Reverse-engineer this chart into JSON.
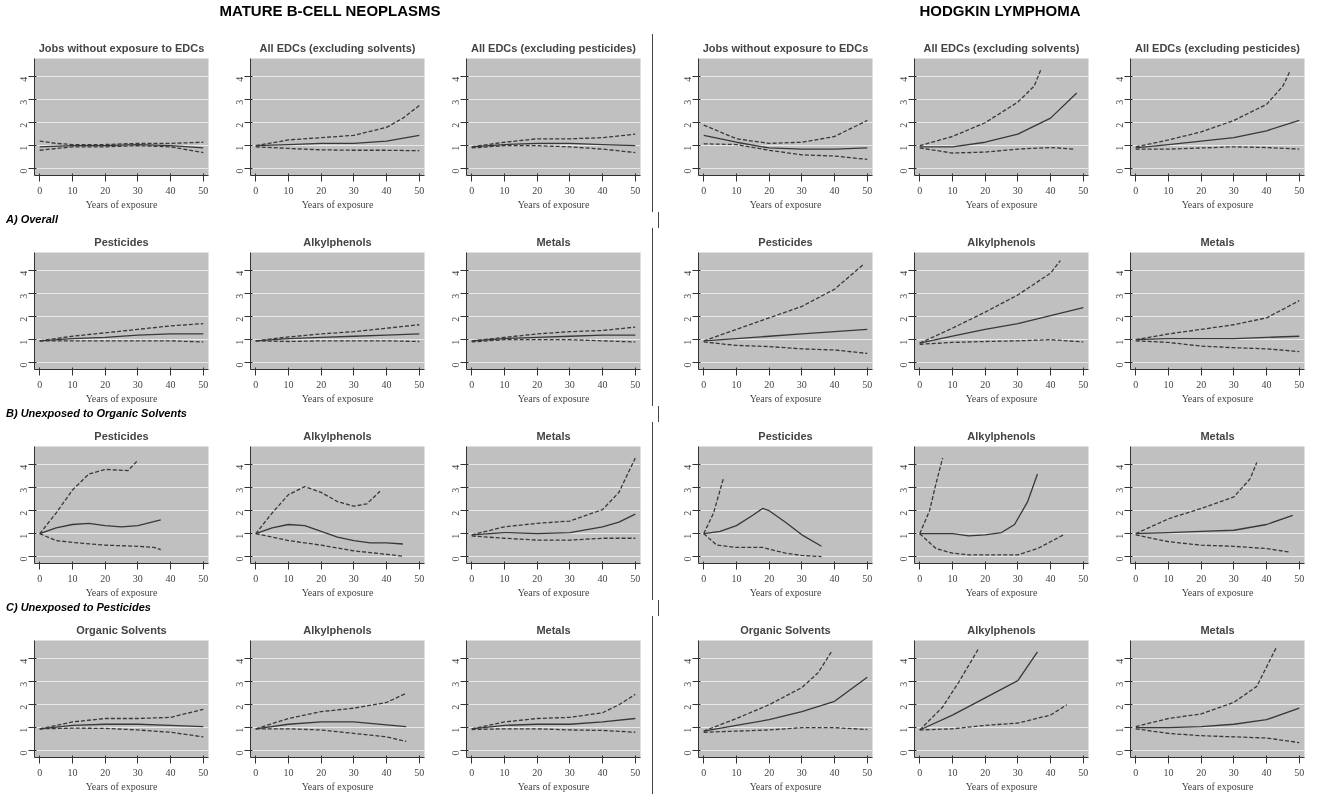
{
  "chart_data": [
    {
      "type": "line",
      "title": "Jobs without exposure to EDCs",
      "xlabel": "Years of exposure",
      "annotations": [
        "MATURE B-CELL NEOPLASMS"
      ],
      "xlim": [
        -1.6,
        51.6
      ],
      "ylim": [
        -0.3,
        4.8
      ],
      "xticks": [
        0,
        10,
        20,
        30,
        40,
        50
      ],
      "yticks": [
        0,
        1,
        2,
        3,
        4
      ],
      "grid": "y",
      "series": [
        {
          "color": "#383838",
          "line_style": "solid",
          "x": [
            0,
            10,
            20,
            30,
            40,
            50
          ],
          "values": [
            0.95,
            1.0,
            1.0,
            1.05,
            1.0,
            0.9
          ]
        },
        {
          "color": "#383838",
          "line_style": "dashed",
          "x": [
            0,
            5,
            10,
            20,
            30,
            40,
            50
          ],
          "values": [
            1.2,
            1.1,
            1.05,
            1.05,
            1.1,
            1.1,
            1.15
          ]
        },
        {
          "color": "#383838",
          "line_style": "dashed",
          "x": [
            0,
            10,
            20,
            30,
            40,
            50
          ],
          "values": [
            0.8,
            0.95,
            0.95,
            1.0,
            0.95,
            0.7
          ]
        }
      ]
    },
    {
      "type": "line",
      "title": "All EDCs (excluding solvents)",
      "xlabel": "Years of exposure",
      "xlim": [
        -1.6,
        51.6
      ],
      "ylim": [
        -0.3,
        4.8
      ],
      "xticks": [
        0,
        10,
        20,
        30,
        40,
        50
      ],
      "yticks": [
        0,
        1,
        2,
        3,
        4
      ],
      "grid": "y",
      "series": [
        {
          "color": "#383838",
          "line_style": "solid",
          "x": [
            0,
            10,
            20,
            30,
            40,
            50
          ],
          "values": [
            1.0,
            1.05,
            1.1,
            1.1,
            1.2,
            1.45
          ]
        },
        {
          "color": "#383838",
          "line_style": "dashed",
          "x": [
            0,
            10,
            20,
            30,
            40,
            45,
            50
          ],
          "values": [
            1.0,
            1.25,
            1.35,
            1.45,
            1.8,
            2.2,
            2.75
          ]
        },
        {
          "color": "#383838",
          "line_style": "dashed",
          "x": [
            0,
            10,
            20,
            30,
            40,
            50
          ],
          "values": [
            0.95,
            0.88,
            0.82,
            0.8,
            0.8,
            0.78
          ]
        }
      ]
    },
    {
      "type": "line",
      "title": "All EDCs (excluding pesticides)",
      "xlabel": "Years of exposure",
      "xlim": [
        -1.6,
        51.6
      ],
      "ylim": [
        -0.3,
        4.8
      ],
      "xticks": [
        0,
        10,
        20,
        30,
        40,
        50
      ],
      "yticks": [
        0,
        1,
        2,
        3,
        4
      ],
      "grid": "y",
      "series": [
        {
          "color": "#383838",
          "line_style": "solid",
          "x": [
            0,
            10,
            20,
            30,
            40,
            50
          ],
          "values": [
            0.95,
            1.05,
            1.1,
            1.1,
            1.05,
            1.0
          ]
        },
        {
          "color": "#383838",
          "line_style": "dashed",
          "x": [
            0,
            10,
            20,
            30,
            40,
            50
          ],
          "values": [
            0.95,
            1.15,
            1.3,
            1.3,
            1.35,
            1.5
          ]
        },
        {
          "color": "#383838",
          "line_style": "dashed",
          "x": [
            0,
            10,
            20,
            30,
            40,
            50
          ],
          "values": [
            0.9,
            1.0,
            1.0,
            0.95,
            0.85,
            0.7
          ]
        }
      ]
    },
    {
      "type": "line",
      "title": "Jobs without exposure to EDCs",
      "xlabel": "Years of exposure",
      "annotations": [
        "HODGKIN LYMPHOMA"
      ],
      "xlim": [
        -1.6,
        51.6
      ],
      "ylim": [
        -0.3,
        4.8
      ],
      "xticks": [
        0,
        10,
        20,
        30,
        40,
        50
      ],
      "yticks": [
        0,
        1,
        2,
        3,
        4
      ],
      "grid": "y",
      "series": [
        {
          "color": "#383838",
          "line_style": "solid",
          "x": [
            0,
            10,
            20,
            30,
            40,
            50
          ],
          "values": [
            1.45,
            1.15,
            0.9,
            0.85,
            0.85,
            0.9
          ]
        },
        {
          "color": "#383838",
          "line_style": "dashed",
          "x": [
            0,
            10,
            20,
            30,
            40,
            50
          ],
          "values": [
            1.9,
            1.3,
            1.1,
            1.15,
            1.4,
            2.1
          ]
        },
        {
          "color": "#383838",
          "line_style": "dashed",
          "x": [
            0,
            10,
            20,
            30,
            40,
            50
          ],
          "values": [
            1.08,
            1.05,
            0.8,
            0.6,
            0.55,
            0.4
          ]
        }
      ]
    },
    {
      "type": "line",
      "title": "All EDCs (excluding solvents)",
      "xlabel": "Years of exposure",
      "xlim": [
        -1.6,
        51.6
      ],
      "ylim": [
        -0.3,
        4.8
      ],
      "xticks": [
        0,
        10,
        20,
        30,
        40,
        50
      ],
      "yticks": [
        0,
        1,
        2,
        3,
        4
      ],
      "grid": "y",
      "series": [
        {
          "color": "#383838",
          "line_style": "solid",
          "x": [
            0,
            10,
            20,
            30,
            40,
            48
          ],
          "values": [
            0.95,
            0.95,
            1.15,
            1.5,
            2.2,
            3.3
          ]
        },
        {
          "color": "#383838",
          "line_style": "dashed",
          "x": [
            0,
            10,
            20,
            30,
            35,
            37
          ],
          "values": [
            1.0,
            1.4,
            2.0,
            2.9,
            3.6,
            4.3
          ]
        },
        {
          "color": "#383838",
          "line_style": "dashed",
          "x": [
            0,
            10,
            20,
            30,
            40,
            47
          ],
          "values": [
            0.9,
            0.68,
            0.72,
            0.85,
            0.92,
            0.85
          ]
        }
      ]
    },
    {
      "type": "line",
      "title": "All EDCs (excluding pesticides)",
      "xlabel": "Years of exposure",
      "xlim": [
        -1.6,
        51.6
      ],
      "ylim": [
        -0.3,
        4.8
      ],
      "xticks": [
        0,
        10,
        20,
        30,
        40,
        50
      ],
      "yticks": [
        0,
        1,
        2,
        3,
        4
      ],
      "grid": "y",
      "series": [
        {
          "color": "#383838",
          "line_style": "solid",
          "x": [
            0,
            10,
            20,
            30,
            40,
            50
          ],
          "values": [
            0.9,
            1.05,
            1.2,
            1.35,
            1.65,
            2.1
          ]
        },
        {
          "color": "#383838",
          "line_style": "dashed",
          "x": [
            0,
            10,
            20,
            30,
            40,
            45,
            47
          ],
          "values": [
            0.95,
            1.25,
            1.6,
            2.1,
            2.8,
            3.6,
            4.2
          ]
        },
        {
          "color": "#383838",
          "line_style": "dashed",
          "x": [
            0,
            10,
            20,
            30,
            40,
            50
          ],
          "values": [
            0.85,
            0.85,
            0.9,
            0.95,
            0.92,
            0.85
          ]
        }
      ]
    },
    {
      "type": "line",
      "title": "Pesticides",
      "xlabel": "Years of exposure",
      "annotations": [
        "A) Overall"
      ],
      "xlim": [
        -1.6,
        51.6
      ],
      "ylim": [
        -0.3,
        4.8
      ],
      "xticks": [
        0,
        10,
        20,
        30,
        40,
        50
      ],
      "yticks": [
        0,
        1,
        2,
        3,
        4
      ],
      "grid": "y",
      "series": [
        {
          "color": "#383838",
          "line_style": "solid",
          "x": [
            0,
            10,
            20,
            30,
            40,
            50
          ],
          "values": [
            0.95,
            1.05,
            1.1,
            1.2,
            1.25,
            1.25
          ]
        },
        {
          "color": "#383838",
          "line_style": "dashed",
          "x": [
            0,
            10,
            20,
            30,
            40,
            50
          ],
          "values": [
            0.95,
            1.15,
            1.3,
            1.45,
            1.6,
            1.7
          ]
        },
        {
          "color": "#383838",
          "line_style": "dashed",
          "x": [
            0,
            10,
            20,
            30,
            40,
            50
          ],
          "values": [
            0.95,
            0.95,
            0.95,
            0.95,
            0.95,
            0.9
          ]
        }
      ]
    },
    {
      "type": "line",
      "title": "Alkylphenols",
      "xlabel": "Years of exposure",
      "xlim": [
        -1.6,
        51.6
      ],
      "ylim": [
        -0.3,
        4.8
      ],
      "xticks": [
        0,
        10,
        20,
        30,
        40,
        50
      ],
      "yticks": [
        0,
        1,
        2,
        3,
        4
      ],
      "grid": "y",
      "series": [
        {
          "color": "#383838",
          "line_style": "solid",
          "x": [
            0,
            10,
            20,
            30,
            40,
            50
          ],
          "values": [
            0.95,
            1.05,
            1.1,
            1.15,
            1.2,
            1.25
          ]
        },
        {
          "color": "#383838",
          "line_style": "dashed",
          "x": [
            0,
            10,
            20,
            30,
            40,
            50
          ],
          "values": [
            0.95,
            1.12,
            1.25,
            1.35,
            1.5,
            1.65
          ]
        },
        {
          "color": "#383838",
          "line_style": "dashed",
          "x": [
            0,
            10,
            20,
            30,
            40,
            50
          ],
          "values": [
            0.95,
            0.92,
            0.95,
            0.95,
            0.95,
            0.92
          ]
        }
      ]
    },
    {
      "type": "line",
      "title": "Metals",
      "xlabel": "Years of exposure",
      "xlim": [
        -1.6,
        51.6
      ],
      "ylim": [
        -0.3,
        4.8
      ],
      "xticks": [
        0,
        10,
        20,
        30,
        40,
        50
      ],
      "yticks": [
        0,
        1,
        2,
        3,
        4
      ],
      "grid": "y",
      "series": [
        {
          "color": "#383838",
          "line_style": "solid",
          "x": [
            0,
            10,
            20,
            30,
            40,
            50
          ],
          "values": [
            0.95,
            1.05,
            1.1,
            1.15,
            1.2,
            1.2
          ]
        },
        {
          "color": "#383838",
          "line_style": "dashed",
          "x": [
            0,
            10,
            20,
            30,
            40,
            50
          ],
          "values": [
            0.95,
            1.1,
            1.25,
            1.35,
            1.4,
            1.55
          ]
        },
        {
          "color": "#383838",
          "line_style": "dashed",
          "x": [
            0,
            10,
            20,
            30,
            40,
            50
          ],
          "values": [
            0.9,
            1.0,
            1.0,
            1.0,
            0.95,
            0.9
          ]
        }
      ]
    },
    {
      "type": "line",
      "title": "Pesticides",
      "xlabel": "Years of exposure",
      "xlim": [
        -1.6,
        51.6
      ],
      "ylim": [
        -0.3,
        4.8
      ],
      "xticks": [
        0,
        10,
        20,
        30,
        40,
        50
      ],
      "yticks": [
        0,
        1,
        2,
        3,
        4
      ],
      "grid": "y",
      "series": [
        {
          "color": "#383838",
          "line_style": "solid",
          "x": [
            0,
            10,
            20,
            30,
            40,
            50
          ],
          "values": [
            0.95,
            1.05,
            1.15,
            1.25,
            1.35,
            1.45
          ]
        },
        {
          "color": "#383838",
          "line_style": "dashed",
          "x": [
            0,
            10,
            20,
            30,
            40,
            49
          ],
          "values": [
            0.95,
            1.45,
            1.95,
            2.45,
            3.2,
            4.3
          ]
        },
        {
          "color": "#383838",
          "line_style": "dashed",
          "x": [
            0,
            10,
            20,
            30,
            40,
            50
          ],
          "values": [
            0.9,
            0.75,
            0.7,
            0.6,
            0.55,
            0.4
          ]
        }
      ]
    },
    {
      "type": "line",
      "title": "Alkylphenols",
      "xlabel": "Years of exposure",
      "xlim": [
        -1.6,
        51.6
      ],
      "ylim": [
        -0.3,
        4.8
      ],
      "xticks": [
        0,
        10,
        20,
        30,
        40,
        50
      ],
      "yticks": [
        0,
        1,
        2,
        3,
        4
      ],
      "grid": "y",
      "series": [
        {
          "color": "#383838",
          "line_style": "solid",
          "x": [
            0,
            10,
            20,
            30,
            40,
            50
          ],
          "values": [
            0.85,
            1.15,
            1.45,
            1.7,
            2.05,
            2.4
          ]
        },
        {
          "color": "#383838",
          "line_style": "dashed",
          "x": [
            0,
            10,
            20,
            30,
            40,
            43
          ],
          "values": [
            0.85,
            1.5,
            2.2,
            2.95,
            3.9,
            4.45
          ]
        },
        {
          "color": "#383838",
          "line_style": "dashed",
          "x": [
            0,
            10,
            20,
            30,
            40,
            50
          ],
          "values": [
            0.8,
            0.88,
            0.92,
            0.95,
            1.0,
            0.9
          ]
        }
      ]
    },
    {
      "type": "line",
      "title": "Metals",
      "xlabel": "Years of exposure",
      "xlim": [
        -1.6,
        51.6
      ],
      "ylim": [
        -0.3,
        4.8
      ],
      "xticks": [
        0,
        10,
        20,
        30,
        40,
        50
      ],
      "yticks": [
        0,
        1,
        2,
        3,
        4
      ],
      "grid": "y",
      "series": [
        {
          "color": "#383838",
          "line_style": "solid",
          "x": [
            0,
            10,
            20,
            30,
            40,
            50
          ],
          "values": [
            1.0,
            1.05,
            1.05,
            1.05,
            1.1,
            1.15
          ]
        },
        {
          "color": "#383838",
          "line_style": "dashed",
          "x": [
            0,
            10,
            20,
            30,
            40,
            50
          ],
          "values": [
            1.0,
            1.25,
            1.45,
            1.65,
            1.95,
            2.7
          ]
        },
        {
          "color": "#383838",
          "line_style": "dashed",
          "x": [
            0,
            10,
            20,
            30,
            40,
            50
          ],
          "values": [
            0.95,
            0.88,
            0.72,
            0.65,
            0.6,
            0.48
          ]
        }
      ]
    },
    {
      "type": "line",
      "title": "Pesticides",
      "xlabel": "Years of exposure",
      "annotations": [
        "B) Unexposed to Organic Solvents"
      ],
      "xlim": [
        -1.6,
        51.6
      ],
      "ylim": [
        -0.3,
        4.8
      ],
      "xticks": [
        0,
        10,
        20,
        30,
        40,
        50
      ],
      "yticks": [
        0,
        1,
        2,
        3,
        4
      ],
      "grid": "y",
      "series": [
        {
          "color": "#383838",
          "line_style": "solid",
          "x": [
            0,
            5,
            10,
            15,
            20,
            25,
            30,
            37
          ],
          "values": [
            1.0,
            1.25,
            1.4,
            1.45,
            1.35,
            1.3,
            1.35,
            1.6
          ]
        },
        {
          "color": "#383838",
          "line_style": "dashed",
          "x": [
            0,
            5,
            10,
            15,
            20,
            27,
            30
          ],
          "values": [
            1.0,
            1.9,
            2.9,
            3.6,
            3.8,
            3.75,
            4.2
          ]
        },
        {
          "color": "#383838",
          "line_style": "dashed",
          "x": [
            0,
            5,
            10,
            20,
            30,
            35,
            37
          ],
          "values": [
            1.0,
            0.7,
            0.62,
            0.5,
            0.45,
            0.4,
            0.3
          ]
        }
      ]
    },
    {
      "type": "line",
      "title": "Alkylphenols",
      "xlabel": "Years of exposure",
      "xlim": [
        -1.6,
        51.6
      ],
      "ylim": [
        -0.3,
        4.8
      ],
      "xticks": [
        0,
        10,
        20,
        30,
        40,
        50
      ],
      "yticks": [
        0,
        1,
        2,
        3,
        4
      ],
      "grid": "y",
      "series": [
        {
          "color": "#383838",
          "line_style": "solid",
          "x": [
            0,
            5,
            10,
            15,
            20,
            25,
            30,
            35,
            40,
            45
          ],
          "values": [
            1.0,
            1.25,
            1.4,
            1.35,
            1.1,
            0.85,
            0.7,
            0.6,
            0.6,
            0.55
          ]
        },
        {
          "color": "#383838",
          "line_style": "dashed",
          "x": [
            0,
            5,
            10,
            15,
            20,
            25,
            30,
            34,
            38
          ],
          "values": [
            1.0,
            1.9,
            2.7,
            3.05,
            2.8,
            2.4,
            2.2,
            2.3,
            2.85
          ]
        },
        {
          "color": "#383838",
          "line_style": "dashed",
          "x": [
            0,
            10,
            20,
            30,
            40,
            45
          ],
          "values": [
            1.0,
            0.7,
            0.5,
            0.25,
            0.1,
            0.02
          ]
        }
      ]
    },
    {
      "type": "line",
      "title": "Metals",
      "xlabel": "Years of exposure",
      "xlim": [
        -1.6,
        51.6
      ],
      "ylim": [
        -0.3,
        4.8
      ],
      "xticks": [
        0,
        10,
        20,
        30,
        40,
        50
      ],
      "yticks": [
        0,
        1,
        2,
        3,
        4
      ],
      "grid": "y",
      "series": [
        {
          "color": "#383838",
          "line_style": "solid",
          "x": [
            0,
            10,
            20,
            30,
            40,
            45,
            50
          ],
          "values": [
            0.95,
            1.05,
            1.0,
            1.05,
            1.3,
            1.5,
            1.85
          ]
        },
        {
          "color": "#383838",
          "line_style": "dashed",
          "x": [
            0,
            10,
            20,
            30,
            40,
            45,
            50
          ],
          "values": [
            0.95,
            1.3,
            1.45,
            1.55,
            2.05,
            2.8,
            4.3
          ]
        },
        {
          "color": "#383838",
          "line_style": "dashed",
          "x": [
            0,
            10,
            20,
            30,
            40,
            50
          ],
          "values": [
            0.9,
            0.8,
            0.72,
            0.72,
            0.8,
            0.8
          ]
        }
      ]
    },
    {
      "type": "line",
      "title": "Pesticides",
      "xlabel": "Years of exposure",
      "xlim": [
        -1.6,
        51.6
      ],
      "ylim": [
        -0.3,
        4.8
      ],
      "xticks": [
        0,
        10,
        20,
        30,
        40,
        50
      ],
      "yticks": [
        0,
        1,
        2,
        3,
        4
      ],
      "grid": "y",
      "series": [
        {
          "color": "#383838",
          "line_style": "solid",
          "x": [
            0,
            5,
            10,
            15,
            18,
            20,
            25,
            30,
            36
          ],
          "values": [
            1.0,
            1.1,
            1.35,
            1.8,
            2.1,
            2.0,
            1.5,
            0.95,
            0.45
          ]
        },
        {
          "color": "#383838",
          "line_style": "dashed",
          "x": [
            0,
            3,
            6
          ],
          "values": [
            1.0,
            1.9,
            3.4
          ]
        },
        {
          "color": "#383838",
          "line_style": "dashed",
          "x": [
            0,
            4,
            10,
            18,
            25,
            30,
            36
          ],
          "values": [
            1.0,
            0.5,
            0.4,
            0.4,
            0.15,
            0.05,
            0.0
          ]
        }
      ]
    },
    {
      "type": "line",
      "title": "Alkylphenols",
      "xlabel": "Years of exposure",
      "xlim": [
        -1.6,
        51.6
      ],
      "ylim": [
        -0.3,
        4.8
      ],
      "xticks": [
        0,
        10,
        20,
        30,
        40,
        50
      ],
      "yticks": [
        0,
        1,
        2,
        3,
        4
      ],
      "grid": "y",
      "series": [
        {
          "color": "#383838",
          "line_style": "solid",
          "x": [
            0,
            10,
            15,
            20,
            25,
            29,
            33,
            36
          ],
          "values": [
            1.0,
            1.0,
            0.9,
            0.95,
            1.05,
            1.4,
            2.4,
            3.6
          ]
        },
        {
          "color": "#383838",
          "line_style": "dashed",
          "x": [
            0,
            3,
            5,
            7
          ],
          "values": [
            1.0,
            2.0,
            3.2,
            4.3
          ]
        },
        {
          "color": "#383838",
          "line_style": "dashed",
          "x": [
            0,
            5,
            10,
            15,
            20,
            30,
            36,
            44
          ],
          "values": [
            1.0,
            0.35,
            0.15,
            0.08,
            0.08,
            0.08,
            0.35,
            0.95
          ]
        }
      ]
    },
    {
      "type": "line",
      "title": "Metals",
      "xlabel": "Years of exposure",
      "xlim": [
        -1.6,
        51.6
      ],
      "ylim": [
        -0.3,
        4.8
      ],
      "xticks": [
        0,
        10,
        20,
        30,
        40,
        50
      ],
      "yticks": [
        0,
        1,
        2,
        3,
        4
      ],
      "grid": "y",
      "series": [
        {
          "color": "#383838",
          "line_style": "solid",
          "x": [
            0,
            10,
            20,
            30,
            40,
            48
          ],
          "values": [
            1.0,
            1.05,
            1.1,
            1.15,
            1.4,
            1.8
          ]
        },
        {
          "color": "#383838",
          "line_style": "dashed",
          "x": [
            0,
            10,
            20,
            30,
            35,
            37
          ],
          "values": [
            1.0,
            1.65,
            2.1,
            2.6,
            3.4,
            4.1
          ]
        },
        {
          "color": "#383838",
          "line_style": "dashed",
          "x": [
            0,
            10,
            20,
            30,
            40,
            47
          ],
          "values": [
            0.95,
            0.65,
            0.5,
            0.45,
            0.35,
            0.2
          ]
        }
      ]
    },
    {
      "type": "line",
      "title": "Organic Solvents",
      "xlabel": "Years of exposure",
      "annotations": [
        "C) Unexposed to Pesticides"
      ],
      "xlim": [
        -1.6,
        51.6
      ],
      "ylim": [
        -0.3,
        4.8
      ],
      "xticks": [
        0,
        10,
        20,
        30,
        40,
        50
      ],
      "yticks": [
        0,
        1,
        2,
        3,
        4
      ],
      "grid": "y",
      "series": [
        {
          "color": "#383838",
          "line_style": "solid",
          "x": [
            0,
            10,
            20,
            30,
            40,
            50
          ],
          "values": [
            0.95,
            1.1,
            1.15,
            1.15,
            1.1,
            1.05
          ]
        },
        {
          "color": "#383838",
          "line_style": "dashed",
          "x": [
            0,
            10,
            20,
            30,
            40,
            50
          ],
          "values": [
            0.95,
            1.25,
            1.4,
            1.4,
            1.45,
            1.8
          ]
        },
        {
          "color": "#383838",
          "line_style": "dashed",
          "x": [
            0,
            10,
            20,
            30,
            40,
            50
          ],
          "values": [
            0.95,
            0.98,
            0.97,
            0.9,
            0.8,
            0.6
          ]
        }
      ]
    },
    {
      "type": "line",
      "title": "Alkylphenols",
      "xlabel": "Years of exposure",
      "xlim": [
        -1.6,
        51.6
      ],
      "ylim": [
        -0.3,
        4.8
      ],
      "xticks": [
        0,
        10,
        20,
        30,
        40,
        50
      ],
      "yticks": [
        0,
        1,
        2,
        3,
        4
      ],
      "grid": "y",
      "series": [
        {
          "color": "#383838",
          "line_style": "solid",
          "x": [
            0,
            10,
            20,
            30,
            40,
            46
          ],
          "values": [
            0.95,
            1.15,
            1.25,
            1.25,
            1.12,
            1.05
          ]
        },
        {
          "color": "#383838",
          "line_style": "dashed",
          "x": [
            0,
            10,
            20,
            30,
            40,
            46
          ],
          "values": [
            0.95,
            1.4,
            1.7,
            1.85,
            2.1,
            2.5
          ]
        },
        {
          "color": "#383838",
          "line_style": "dashed",
          "x": [
            0,
            10,
            20,
            30,
            40,
            46
          ],
          "values": [
            0.95,
            0.95,
            0.9,
            0.75,
            0.6,
            0.4
          ]
        }
      ]
    },
    {
      "type": "line",
      "title": "Metals",
      "xlabel": "Years of exposure",
      "xlim": [
        -1.6,
        51.6
      ],
      "ylim": [
        -0.3,
        4.8
      ],
      "xticks": [
        0,
        10,
        20,
        30,
        40,
        50
      ],
      "yticks": [
        0,
        1,
        2,
        3,
        4
      ],
      "grid": "y",
      "series": [
        {
          "color": "#383838",
          "line_style": "solid",
          "x": [
            0,
            10,
            20,
            30,
            40,
            50
          ],
          "values": [
            0.95,
            1.1,
            1.15,
            1.15,
            1.25,
            1.4
          ]
        },
        {
          "color": "#383838",
          "line_style": "dashed",
          "x": [
            0,
            10,
            20,
            30,
            40,
            45,
            50
          ],
          "values": [
            0.95,
            1.25,
            1.4,
            1.45,
            1.65,
            2.0,
            2.45
          ]
        },
        {
          "color": "#383838",
          "line_style": "dashed",
          "x": [
            0,
            10,
            20,
            30,
            40,
            50
          ],
          "values": [
            0.92,
            0.95,
            0.95,
            0.9,
            0.88,
            0.8
          ]
        }
      ]
    },
    {
      "type": "line",
      "title": "Organic Solvents",
      "xlabel": "Years of exposure",
      "xlim": [
        -1.6,
        51.6
      ],
      "ylim": [
        -0.3,
        4.8
      ],
      "xticks": [
        0,
        10,
        20,
        30,
        40,
        50
      ],
      "yticks": [
        0,
        1,
        2,
        3,
        4
      ],
      "grid": "y",
      "series": [
        {
          "color": "#383838",
          "line_style": "solid",
          "x": [
            0,
            10,
            20,
            30,
            40,
            50
          ],
          "values": [
            0.85,
            1.1,
            1.35,
            1.7,
            2.15,
            3.2
          ]
        },
        {
          "color": "#383838",
          "line_style": "dashed",
          "x": [
            0,
            10,
            20,
            30,
            35,
            39
          ],
          "values": [
            0.85,
            1.4,
            2.0,
            2.75,
            3.4,
            4.3
          ]
        },
        {
          "color": "#383838",
          "line_style": "dashed",
          "x": [
            0,
            10,
            20,
            30,
            40,
            50
          ],
          "values": [
            0.8,
            0.85,
            0.9,
            1.0,
            1.0,
            0.92
          ]
        }
      ]
    },
    {
      "type": "line",
      "title": "Alkylphenols",
      "xlabel": "Years of exposure",
      "xlim": [
        -1.6,
        51.6
      ],
      "ylim": [
        -0.3,
        4.8
      ],
      "xticks": [
        0,
        10,
        20,
        30,
        40,
        50
      ],
      "yticks": [
        0,
        1,
        2,
        3,
        4
      ],
      "grid": "y",
      "series": [
        {
          "color": "#383838",
          "line_style": "solid",
          "x": [
            0,
            10,
            20,
            30,
            36
          ],
          "values": [
            0.9,
            1.55,
            2.3,
            3.05,
            4.3
          ]
        },
        {
          "color": "#383838",
          "line_style": "dashed",
          "x": [
            0,
            7,
            12,
            18
          ],
          "values": [
            0.9,
            1.9,
            3.0,
            4.45
          ]
        },
        {
          "color": "#383838",
          "line_style": "dashed",
          "x": [
            0,
            10,
            20,
            30,
            40,
            45
          ],
          "values": [
            0.9,
            0.95,
            1.1,
            1.2,
            1.55,
            2.0
          ]
        }
      ]
    },
    {
      "type": "line",
      "title": "Metals",
      "xlabel": "Years of exposure",
      "xlim": [
        -1.6,
        51.6
      ],
      "ylim": [
        -0.3,
        4.8
      ],
      "xticks": [
        0,
        10,
        20,
        30,
        40,
        50
      ],
      "yticks": [
        0,
        1,
        2,
        3,
        4
      ],
      "grid": "y",
      "series": [
        {
          "color": "#383838",
          "line_style": "solid",
          "x": [
            0,
            10,
            20,
            30,
            40,
            50
          ],
          "values": [
            1.0,
            1.0,
            1.05,
            1.15,
            1.35,
            1.85
          ]
        },
        {
          "color": "#383838",
          "line_style": "dashed",
          "x": [
            0,
            10,
            20,
            30,
            37,
            43
          ],
          "values": [
            1.05,
            1.4,
            1.6,
            2.1,
            2.8,
            4.5
          ]
        },
        {
          "color": "#383838",
          "line_style": "dashed",
          "x": [
            0,
            10,
            20,
            30,
            40,
            50
          ],
          "values": [
            0.95,
            0.75,
            0.65,
            0.6,
            0.55,
            0.35
          ]
        }
      ]
    }
  ]
}
